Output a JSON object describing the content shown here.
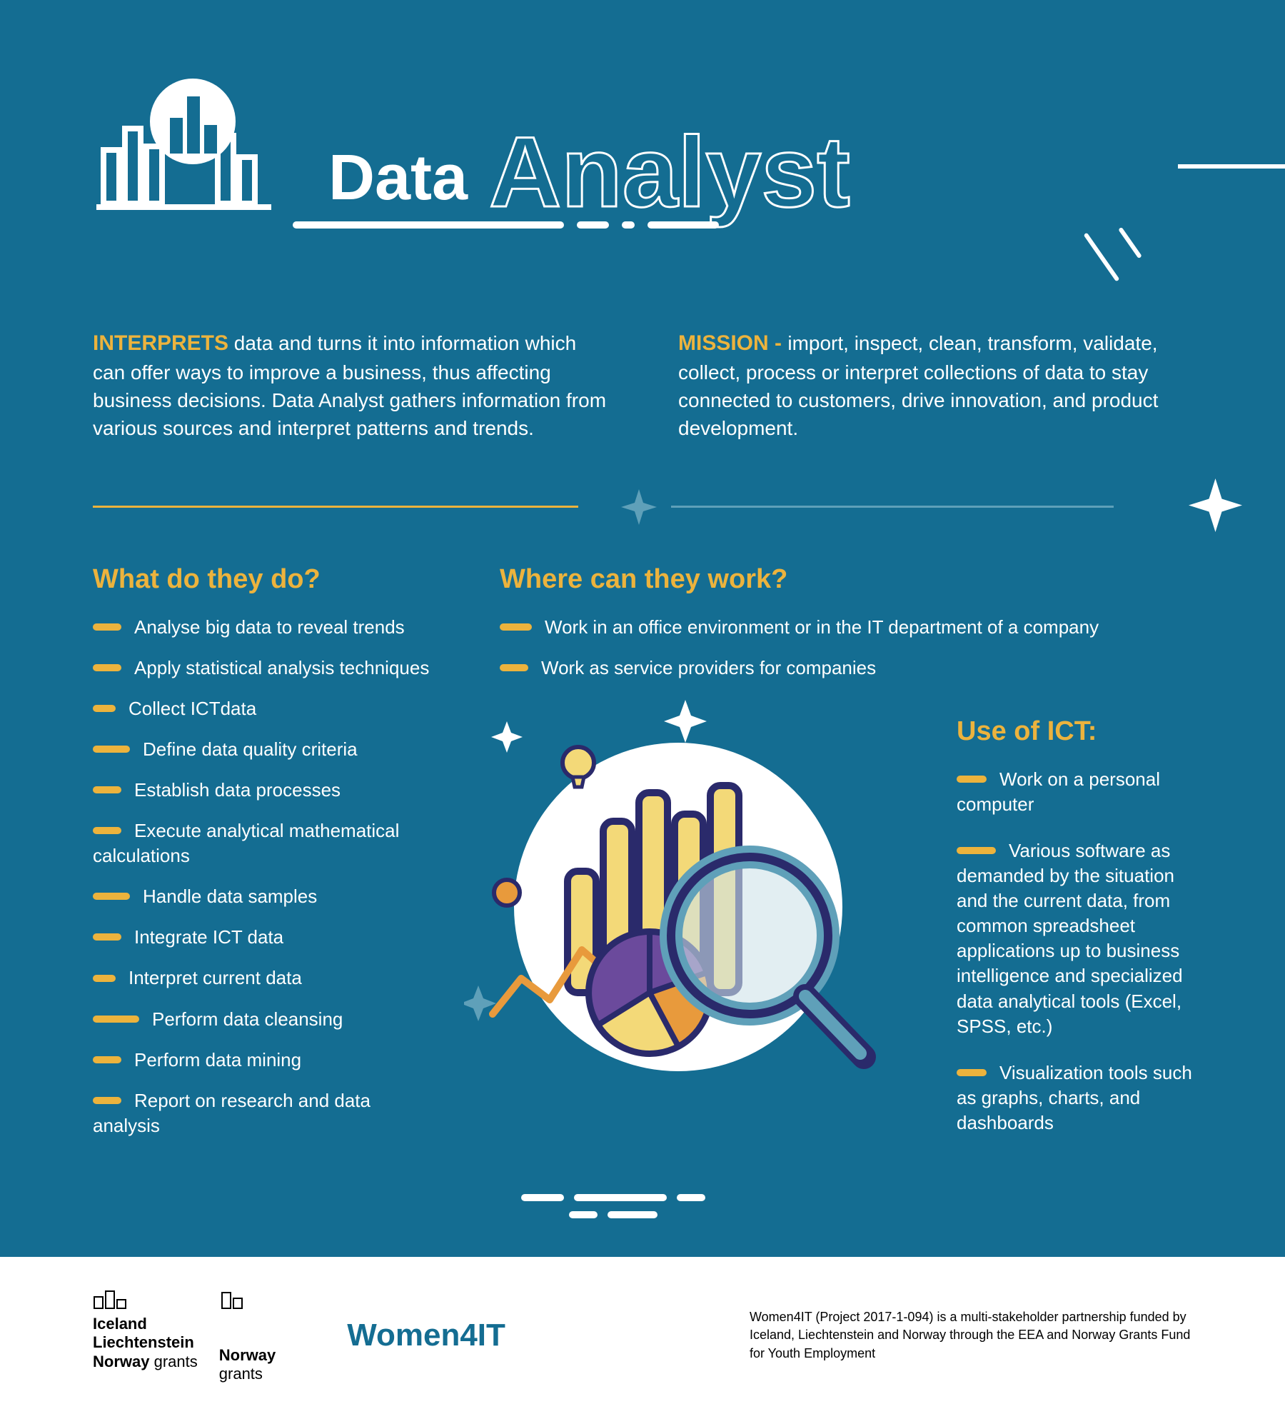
{
  "colors": {
    "background": "#146d92",
    "accent": "#ecb33d",
    "text": "#ffffff",
    "light_blue": "#5fa0b9",
    "footer_bg": "#ffffff",
    "footer_text": "#000000",
    "brand": "#146d92",
    "illus_navy": "#2a2a6b",
    "illus_yellow": "#f3d978",
    "illus_orange": "#e89a3c",
    "illus_purple": "#6b4a9c"
  },
  "header": {
    "title_solid": "Data",
    "title_outline": "Analyst"
  },
  "intro": {
    "left_accent": "INTERPRETS",
    "left_text": " data and turns it into information which can offer ways to improve a business, thus affecting business decisions. Data Analyst gathers information from various sources and interpret patterns and trends.",
    "right_accent": "MISSION - ",
    "right_text": " import, inspect, clean, transform, validate, collect, process or interpret collections of data to stay connected to customers, drive innovation, and product development."
  },
  "sections": {
    "what_do": {
      "title": "What do they do?",
      "items": [
        {
          "text": "Analyse big data to reveal trends",
          "bullet_w": 40
        },
        {
          "text": "Apply statistical analysis techniques",
          "bullet_w": 40
        },
        {
          "text": "Collect ICTdata",
          "bullet_w": 32
        },
        {
          "text": "Define data quality criteria",
          "bullet_w": 52
        },
        {
          "text": "Establish data processes",
          "bullet_w": 40
        },
        {
          "text": "Execute analytical mathematical calculations",
          "bullet_w": 40
        },
        {
          "text": "Handle data samples",
          "bullet_w": 52
        },
        {
          "text": "Integrate ICT data",
          "bullet_w": 40
        },
        {
          "text": "Interpret current data",
          "bullet_w": 32
        },
        {
          "text": "Perform data cleansing",
          "bullet_w": 65
        },
        {
          "text": "Perform data mining",
          "bullet_w": 40
        },
        {
          "text": "Report on research and data analysis",
          "bullet_w": 40
        }
      ]
    },
    "where_work": {
      "title": "Where can they work?",
      "items": [
        {
          "text": "Work in an office environment or in the IT department of a company",
          "bullet_w": 45
        },
        {
          "text": "Work as service providers for companies",
          "bullet_w": 40
        }
      ]
    },
    "ict": {
      "title": "Use of ICT:",
      "items": [
        {
          "text": "Work on a personal computer",
          "bullet_w": 42
        },
        {
          "text": "Various software as demanded by the situation and the current data, from common spreadsheet applications up to business intelligence and specialized data analytical tools (Excel, SPSS, etc.)",
          "bullet_w": 55
        },
        {
          "text": "Visualization tools such as graphs, charts, and dashboards",
          "bullet_w": 42
        }
      ]
    }
  },
  "footer": {
    "grant1_lines": [
      "Iceland",
      "Liechtenstein",
      "Norway"
    ],
    "grant1_suffix": "grants",
    "grant2_lines": [
      "Norway"
    ],
    "grant2_suffix": "grants",
    "brand": "Women4IT",
    "text": "Women4IT (Project 2017-1-094) is a multi-stakeholder partnership funded by Iceland, Liechtenstein and Norway through the EEA and Norway Grants Fund for Youth Employment"
  }
}
